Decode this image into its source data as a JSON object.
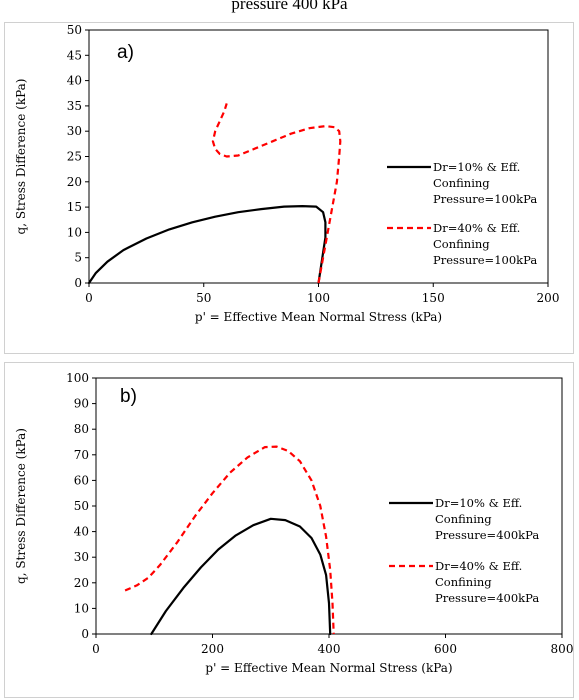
{
  "caption_top": "pressure 400 kPa",
  "colors": {
    "series1": "#000000",
    "series2": "#ff0000"
  },
  "chart_data": [
    {
      "type": "line",
      "panel_label": "a)",
      "xlabel": "p' = Effective Mean Normal Stress (kPa)",
      "ylabel": "q, Stress Difference (kPa)",
      "xlim": [
        0,
        200
      ],
      "ylim": [
        0,
        50
      ],
      "xticks": [
        0,
        50,
        100,
        150,
        200
      ],
      "yticks": [
        0,
        5,
        10,
        15,
        20,
        25,
        30,
        35,
        40,
        45,
        50
      ],
      "legend_position": "right",
      "series": [
        {
          "name": "Dr=10% & Eff. Confining Pressure=100kPa",
          "legend_lines": [
            "Dr=10% & Eff.",
            "Confining",
            "Pressure=100kPa"
          ],
          "style": "solid",
          "x": [
            100,
            101,
            102,
            103,
            103,
            102,
            99,
            93,
            85,
            75,
            65,
            55,
            45,
            35,
            25,
            15,
            8,
            3,
            0
          ],
          "y": [
            0,
            3,
            6,
            9,
            12,
            14,
            15.1,
            15.2,
            15.1,
            14.6,
            14,
            13.1,
            12,
            10.6,
            8.8,
            6.5,
            4.2,
            2,
            0
          ]
        },
        {
          "name": "Dr=40% & Eff. Confining Pressure=100kPa",
          "legend_lines": [
            "Dr=40% & Eff.",
            "Confining",
            "Pressure=100kPa"
          ],
          "style": "dashed",
          "x": [
            100,
            102,
            104,
            106,
            108,
            109,
            109.5,
            109,
            107,
            103,
            96,
            88,
            80,
            72,
            65,
            60,
            57,
            55,
            54,
            55,
            57,
            59,
            60
          ],
          "y": [
            0,
            5,
            10,
            15,
            20,
            25,
            28,
            30,
            30.8,
            31,
            30.6,
            29.5,
            28,
            26.5,
            25.2,
            25,
            25.5,
            26.5,
            28,
            30,
            32,
            34,
            35.5
          ]
        }
      ]
    },
    {
      "type": "line",
      "panel_label": "b)",
      "xlabel": "p' = Effective Mean Normal Stress (kPa)",
      "ylabel": "q, Stress Difference (kPa)",
      "xlim": [
        0,
        800
      ],
      "ylim": [
        0,
        100
      ],
      "xticks": [
        0,
        200,
        400,
        600,
        800
      ],
      "yticks": [
        0,
        10,
        20,
        30,
        40,
        50,
        60,
        70,
        80,
        90,
        100
      ],
      "legend_position": "right",
      "series": [
        {
          "name": "Dr=10% & Eff. Confining Pressure=400kPa",
          "legend_lines": [
            "Dr=10% & Eff.",
            "Confining",
            "Pressure=400kPa"
          ],
          "style": "solid",
          "x": [
            95,
            120,
            150,
            180,
            210,
            240,
            270,
            300,
            325,
            350,
            370,
            385,
            395,
            400,
            402
          ],
          "y": [
            0,
            9,
            18,
            26,
            33,
            38.5,
            42.5,
            45,
            44.5,
            42,
            37.5,
            31,
            23,
            12,
            0
          ]
        },
        {
          "name": "Dr=40% & Eff. Confining Pressure=400kPa",
          "legend_lines": [
            "Dr=40% & Eff.",
            "Confining",
            "Pressure=400kPa"
          ],
          "style": "dashed",
          "x": [
            50,
            70,
            90,
            110,
            140,
            170,
            200,
            230,
            260,
            290,
            310,
            330,
            350,
            370,
            385,
            395,
            402,
            406,
            408
          ],
          "y": [
            17,
            19,
            22,
            27,
            36,
            46,
            55,
            63,
            69,
            73,
            73.2,
            71.5,
            67.5,
            60,
            50,
            38,
            25,
            12,
            0
          ]
        }
      ]
    }
  ]
}
